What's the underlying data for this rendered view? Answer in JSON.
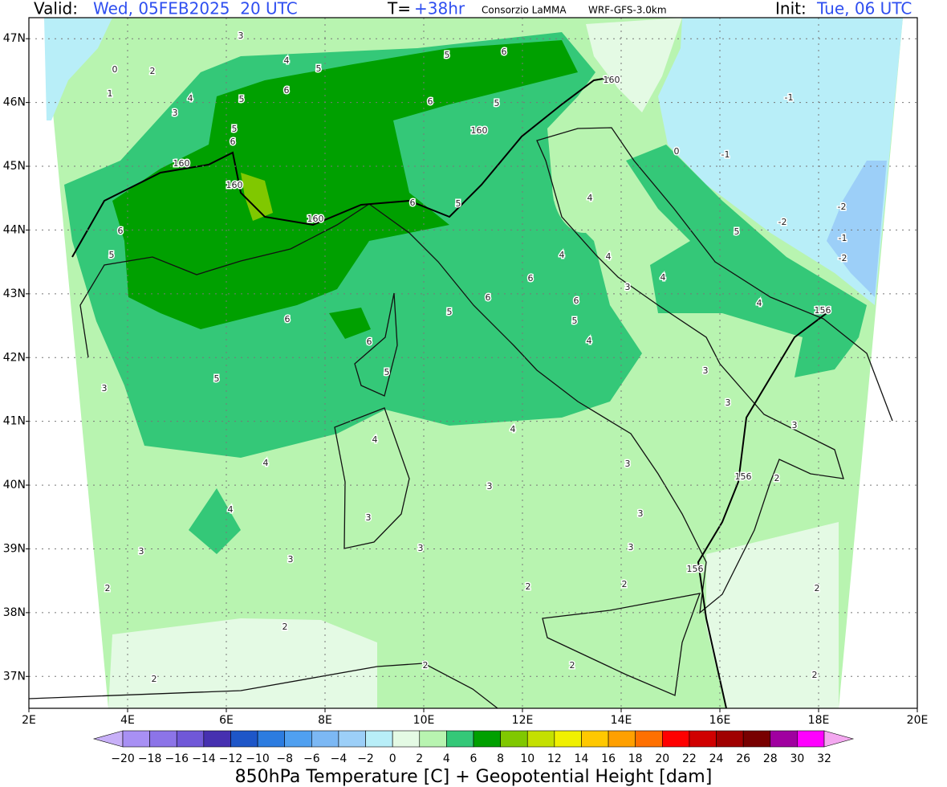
{
  "header": {
    "valid_label": "Valid:",
    "valid": "Wed, 05FEB2025  20 UTC",
    "step_label": "T=",
    "step": "+38hr",
    "org": "Consorzio LaMMA",
    "model": "WRF-GFS-3.0km",
    "init_label": "Init:",
    "init": "Tue, 06 UTC"
  },
  "map": {
    "lonlim": [
      2,
      20
    ],
    "latlim": [
      36.5,
      47.33
    ],
    "lon_ticks": [
      {
        "value": 2,
        "label": "2E"
      },
      {
        "value": 4,
        "label": "4E"
      },
      {
        "value": 6,
        "label": "6E"
      },
      {
        "value": 8,
        "label": "8E"
      },
      {
        "value": 10,
        "label": "10E"
      },
      {
        "value": 12,
        "label": "12E"
      },
      {
        "value": 14,
        "label": "14E"
      },
      {
        "value": 16,
        "label": "16E"
      },
      {
        "value": 18,
        "label": "18E"
      },
      {
        "value": 20,
        "label": "20E"
      }
    ],
    "lat_ticks": [
      {
        "value": 37,
        "label": "37N"
      },
      {
        "value": 38,
        "label": "38N"
      },
      {
        "value": 39,
        "label": "39N"
      },
      {
        "value": 40,
        "label": "40N"
      },
      {
        "value": 41,
        "label": "41N"
      },
      {
        "value": 42,
        "label": "42N"
      },
      {
        "value": 43,
        "label": "43N"
      },
      {
        "value": 44,
        "label": "44N"
      },
      {
        "value": 45,
        "label": "45N"
      },
      {
        "value": 46,
        "label": "46N"
      },
      {
        "value": 47,
        "label": "47N"
      }
    ],
    "grid": true,
    "contour_labels": [
      "3",
      "4",
      "5",
      "2",
      "0",
      "6",
      "5",
      "4",
      "3",
      "1",
      "5",
      "6",
      "160",
      "160",
      "160",
      "6",
      "5",
      "6",
      "5",
      "3",
      "4",
      "4",
      "3",
      "3",
      "2",
      "2",
      "2",
      "6",
      "5",
      "6",
      "5",
      "160",
      "160",
      "6",
      "5",
      "4",
      "4",
      "4",
      "6",
      "3",
      "5",
      "6",
      "6",
      "5",
      "4",
      "4",
      "3",
      "3",
      "3",
      "3",
      "3",
      "3",
      "2",
      "2",
      "2",
      "2",
      "-1",
      "-1",
      "0",
      "-2",
      "-2",
      "-1",
      "-2",
      "4",
      "4",
      "156",
      "3",
      "3",
      "3",
      "156",
      "2",
      "156",
      "2",
      "2",
      "5",
      "4",
      "5",
      "6"
    ]
  },
  "colorbar": {
    "levels": [
      {
        "value": -20,
        "label": "−20"
      },
      {
        "value": -18,
        "label": "−18"
      },
      {
        "value": -16,
        "label": "−16"
      },
      {
        "value": -14,
        "label": "−14"
      },
      {
        "value": -12,
        "label": "−12"
      },
      {
        "value": -10,
        "label": "−10"
      },
      {
        "value": -8,
        "label": "−8"
      },
      {
        "value": -6,
        "label": "−6"
      },
      {
        "value": -4,
        "label": "−4"
      },
      {
        "value": -2,
        "label": "−2"
      },
      0,
      2,
      4,
      6,
      8,
      10,
      12,
      14,
      16,
      18,
      20,
      22,
      24,
      26,
      28,
      30,
      32
    ],
    "colors": [
      "#c8b0f8",
      "#a890f4",
      "#8c74e8",
      "#7058d8",
      "#4630b0",
      "#1e56c8",
      "#2c7ce0",
      "#50a0f0",
      "#7cb8f4",
      "#9ccff8",
      "#b8eef8",
      "#e4fae4",
      "#b8f4b0",
      "#34c878",
      "#00a000",
      "#80c800",
      "#c4e000",
      "#f0f000",
      "#ffc800",
      "#ffa000",
      "#ff7000",
      "#ff0000",
      "#d00000",
      "#a00000",
      "#780000",
      "#a000a0",
      "#ff00ff",
      "#f4a8f0"
    ],
    "title": "850hPa Temperature [C] + Geopotential Height [dam]"
  }
}
